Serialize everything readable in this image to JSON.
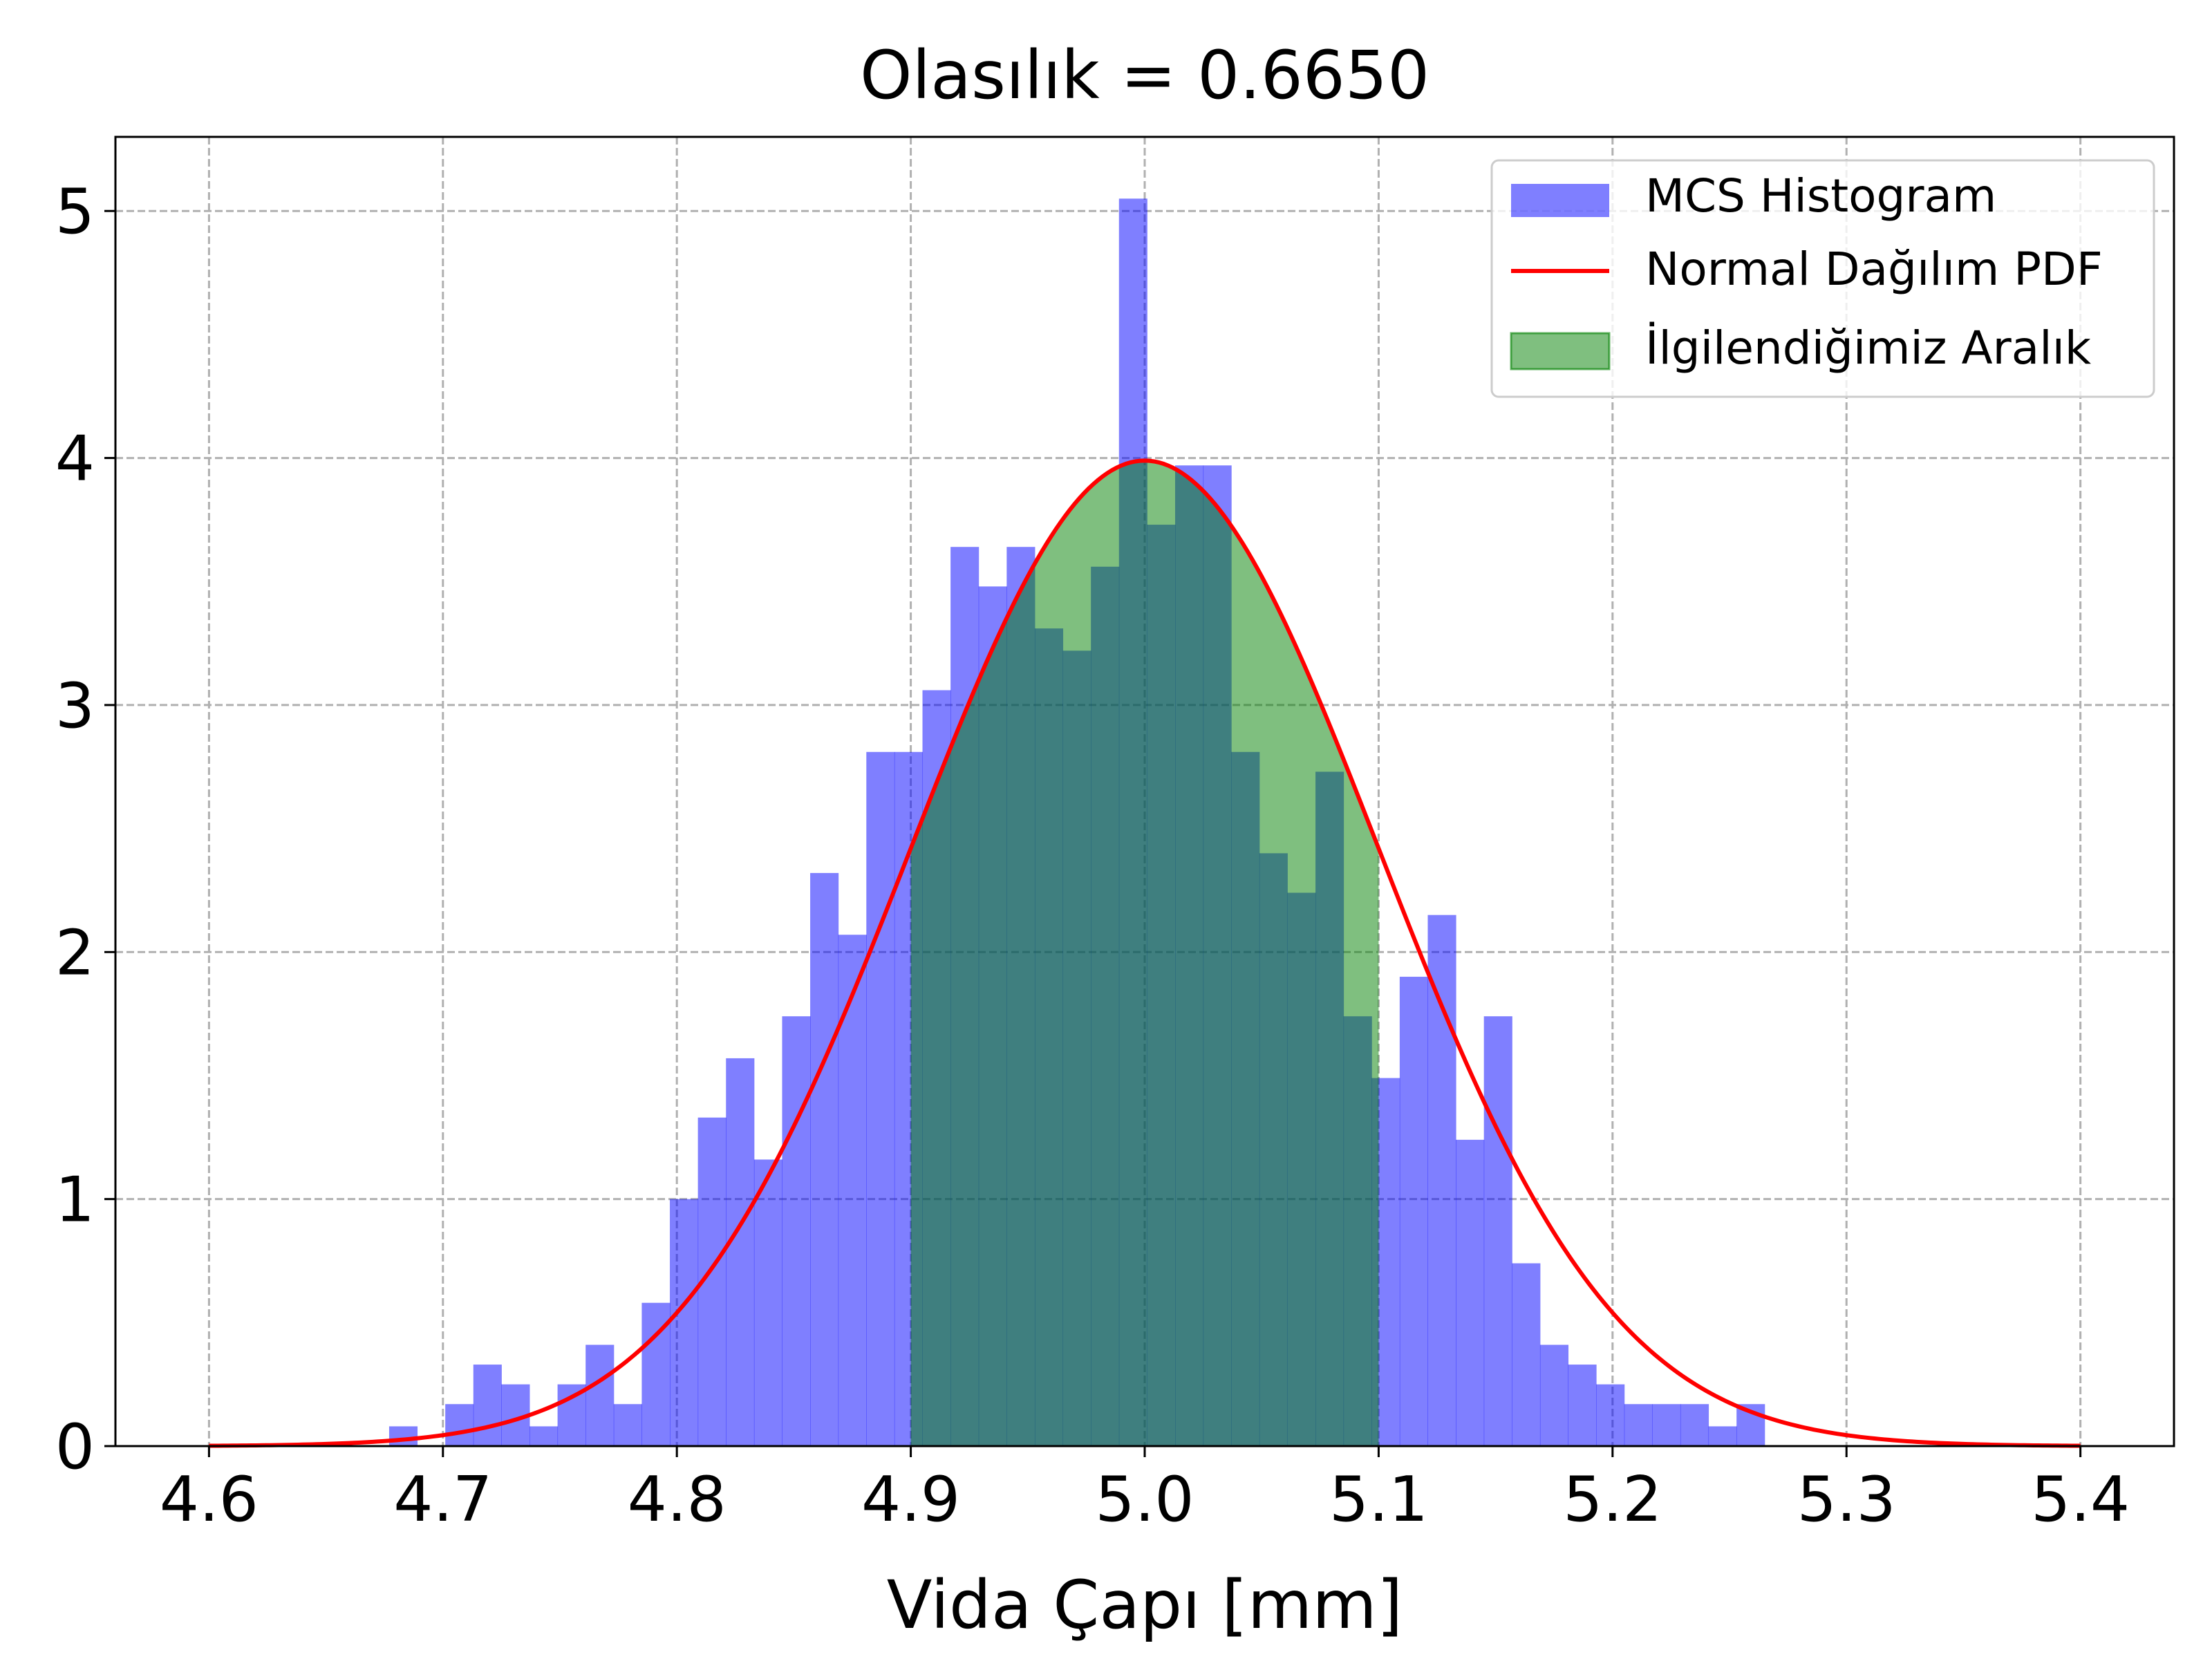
{
  "chart_data": {
    "type": "bar",
    "title": "Olasılık = 0.6650",
    "xlabel": "Vida Çapı [mm]",
    "ylabel": "",
    "xlim": [
      4.56,
      5.44
    ],
    "ylim": [
      0,
      5.3
    ],
    "xticks": [
      4.6,
      4.7,
      4.8,
      4.9,
      5.0,
      5.1,
      5.2,
      5.3,
      5.4
    ],
    "xtick_labels": [
      "4.6",
      "4.7",
      "4.8",
      "4.9",
      "5.0",
      "5.1",
      "5.2",
      "5.3",
      "5.4"
    ],
    "yticks": [
      0,
      1,
      2,
      3,
      4,
      5
    ],
    "ytick_labels": [
      "0",
      "1",
      "2",
      "3",
      "4",
      "5"
    ],
    "grid": true,
    "legend_position": "top-right",
    "series": [
      {
        "name": "MCS Histogram",
        "kind": "histogram",
        "color": "#0000ff",
        "opacity": 0.5,
        "bin_edges": [
          4.677,
          4.689,
          4.701,
          4.713,
          4.725,
          4.737,
          4.749,
          4.761,
          4.773,
          4.785,
          4.797,
          4.809,
          4.821,
          4.833,
          4.845,
          4.857,
          4.869,
          4.881,
          4.893,
          4.905,
          4.917,
          4.929,
          4.941,
          4.953,
          4.965,
          4.977,
          4.989,
          5.001,
          5.013,
          5.025,
          5.037,
          5.049,
          5.061,
          5.073,
          5.085,
          5.097,
          5.109,
          5.121,
          5.133,
          5.145,
          5.157,
          5.169,
          5.181,
          5.193,
          5.205,
          5.217,
          5.229,
          5.241,
          5.253,
          5.265,
          5.277
        ],
        "values": [
          0.08,
          0,
          0.17,
          0.33,
          0.25,
          0.08,
          0.25,
          0.41,
          0.17,
          0.58,
          1.0,
          1.33,
          1.57,
          1.16,
          1.74,
          2.32,
          2.07,
          2.81,
          2.81,
          3.06,
          3.64,
          3.48,
          3.64,
          3.31,
          3.22,
          3.56,
          5.05,
          3.73,
          3.97,
          3.97,
          2.81,
          2.4,
          2.24,
          2.73,
          1.74,
          1.49,
          1.9,
          2.15,
          1.24,
          1.74,
          0.74,
          0.41,
          0.33,
          0.25,
          0.17,
          0.17,
          0.17,
          0.08,
          0.17,
          0
        ]
      },
      {
        "name": "Normal Dağılım PDF",
        "kind": "line",
        "color": "#ff0000",
        "mean": 5.0,
        "std": 0.1,
        "x_range": [
          4.6,
          5.4
        ]
      },
      {
        "name": "İlgilendiğimiz Aralık",
        "kind": "area",
        "color": "#008000",
        "opacity": 0.5,
        "x_range": [
          4.9,
          5.1
        ]
      }
    ],
    "probability": 0.665
  }
}
